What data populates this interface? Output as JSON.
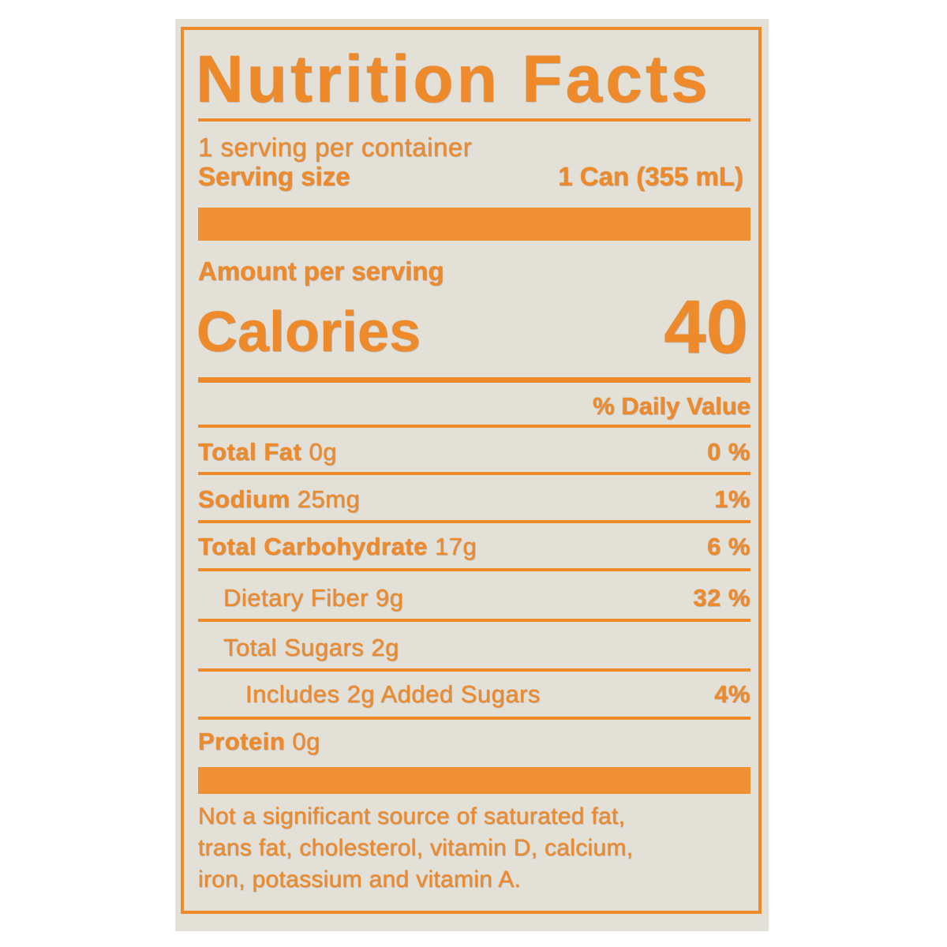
{
  "label": {
    "title": "Nutrition Facts",
    "servings_per_container": "1 serving per container",
    "serving_size_label": "Serving size",
    "serving_size_value": "1 Can (355 mL)",
    "amount_per_serving": "Amount per serving",
    "calories_label": "Calories",
    "calories_value": "40",
    "daily_value_header": "% Daily Value",
    "nutrients": [
      {
        "name": "Total Fat",
        "amount": "0g",
        "dv": "0 %"
      },
      {
        "name": "Sodium",
        "amount": "25mg",
        "dv": "1%"
      },
      {
        "name": "Total Carbohydrate",
        "amount": "17g",
        "dv": "6 %"
      },
      {
        "name": "Dietary Fiber 9g",
        "amount": "",
        "dv": "32 %"
      },
      {
        "name": "Total Sugars 2g",
        "amount": "",
        "dv": ""
      },
      {
        "name": "Includes 2g Added Sugars",
        "amount": "",
        "dv": "4%"
      },
      {
        "name": "Protein",
        "amount": "0g",
        "dv": ""
      }
    ],
    "footnote_lines": [
      "Not a significant source of saturated fat,",
      "trans fat, cholesterol, vitamin D, calcium,",
      "iron, potassium and vitamin A."
    ]
  },
  "colors": {
    "ink": "#ef8a2b",
    "background": "#e3e1d7"
  }
}
